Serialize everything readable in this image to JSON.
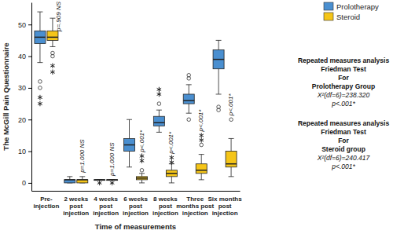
{
  "chart_data": {
    "type": "box",
    "y_label": "The McGill Pain Questionnaire",
    "x_label": "Time of measurements",
    "categories": [
      "Pre-injection",
      "2 weeks post injection",
      "4 weeks post injection",
      "6 weeks post injection",
      "8 weeks post injection",
      "Three months post injection",
      "Six months post injection"
    ],
    "series": [
      {
        "name": "Prolotherapy",
        "color": "#4a8fd0",
        "values": [
          {
            "min": 38,
            "q1": 44,
            "median": 46,
            "q3": 48,
            "max": 54,
            "outliers": [
              32,
              30
            ],
            "extremes": [
              27,
              25
            ]
          },
          {
            "min": 0,
            "q1": 0,
            "median": 1,
            "q3": 1,
            "max": 2,
            "outliers": [],
            "extremes": []
          },
          {
            "min": 1,
            "q1": 1,
            "median": 1,
            "q3": 1,
            "max": 1,
            "outliers": [],
            "extremes": [
              0
            ]
          },
          {
            "min": 5,
            "q1": 10,
            "median": 12,
            "q3": 14,
            "max": 20,
            "outliers": [],
            "extremes": []
          },
          {
            "min": 16,
            "q1": 18,
            "median": 19,
            "q3": 21,
            "max": 23,
            "outliers": [
              25
            ],
            "extremes": [
              28,
              29.5
            ]
          },
          {
            "min": 22,
            "q1": 25,
            "median": 26,
            "q3": 28,
            "max": 31,
            "outliers": [
              33,
              34,
              20
            ],
            "extremes": []
          },
          {
            "min": 28,
            "q1": 36,
            "median": 39,
            "q3": 42,
            "max": 45,
            "outliers": [
              24,
              23
            ],
            "extremes": []
          }
        ]
      },
      {
        "name": "Steroid",
        "color": "#f5c518",
        "values": [
          {
            "min": 43,
            "q1": 45,
            "median": 46,
            "q3": 48,
            "max": 52,
            "outliers": [
              40,
              41
            ],
            "extremes": [
              37,
              35
            ]
          },
          {
            "min": 0,
            "q1": 0,
            "median": 1,
            "q3": 1,
            "max": 2,
            "outliers": [],
            "extremes": []
          },
          {
            "min": 1,
            "q1": 1,
            "median": 1,
            "q3": 1,
            "max": 1,
            "outliers": [],
            "extremes": [
              0
            ]
          },
          {
            "min": 0,
            "q1": 1,
            "median": 1.5,
            "q3": 2,
            "max": 3,
            "outliers": [
              4
            ],
            "extremes": [
              7,
              8.5
            ]
          },
          {
            "min": 0,
            "q1": 2,
            "median": 3,
            "q3": 4,
            "max": 6,
            "outliers": [],
            "extremes": [
              6.5,
              8
            ]
          },
          {
            "min": 1,
            "q1": 3,
            "median": 4,
            "q3": 6,
            "max": 9,
            "outliers": [
              12
            ],
            "extremes": [
              13.5,
              15
            ]
          },
          {
            "min": 2,
            "q1": 5,
            "median": 6,
            "q3": 10,
            "max": 14,
            "outliers": [
              20
            ],
            "extremes": []
          }
        ]
      }
    ],
    "ylim": [
      -2.5,
      57
    ],
    "yticks": [
      0,
      10,
      20,
      30,
      40,
      50
    ],
    "legend": "top-right",
    "annotations": {
      "p_values": [
        "p=.909 NS",
        "p=1.000 NS",
        "p=1.000 NS",
        "p<.001*",
        "p<.001*",
        "p<.001*",
        "p<.001*"
      ],
      "tests": [
        {
          "lines": [
            "Repeated measures analysis",
            "Friedman Test",
            "For",
            "Prolotherapy Group",
            "X²(df=6)=238.320",
            "p<.001*"
          ]
        },
        {
          "lines": [
            "Repeated measures analysis",
            "Friedman Test",
            "For",
            "Steroid group",
            "X²(df=6)=240.417",
            "p<.001*"
          ]
        }
      ]
    }
  }
}
